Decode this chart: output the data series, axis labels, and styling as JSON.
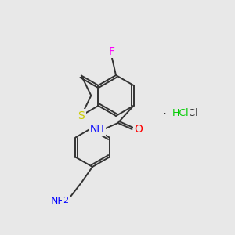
{
  "background_color": "#e8e8e8",
  "bond_color": "#333333",
  "atom_colors": {
    "F": "#ff00ff",
    "S": "#cccc00",
    "N": "#0000ff",
    "O": "#ff0000",
    "Cl": "#00cc00",
    "H_NH": "#0000ff",
    "H_HCl": "#333333",
    "C": "#333333"
  },
  "font_size_atoms": 9,
  "font_size_hcl": 8
}
